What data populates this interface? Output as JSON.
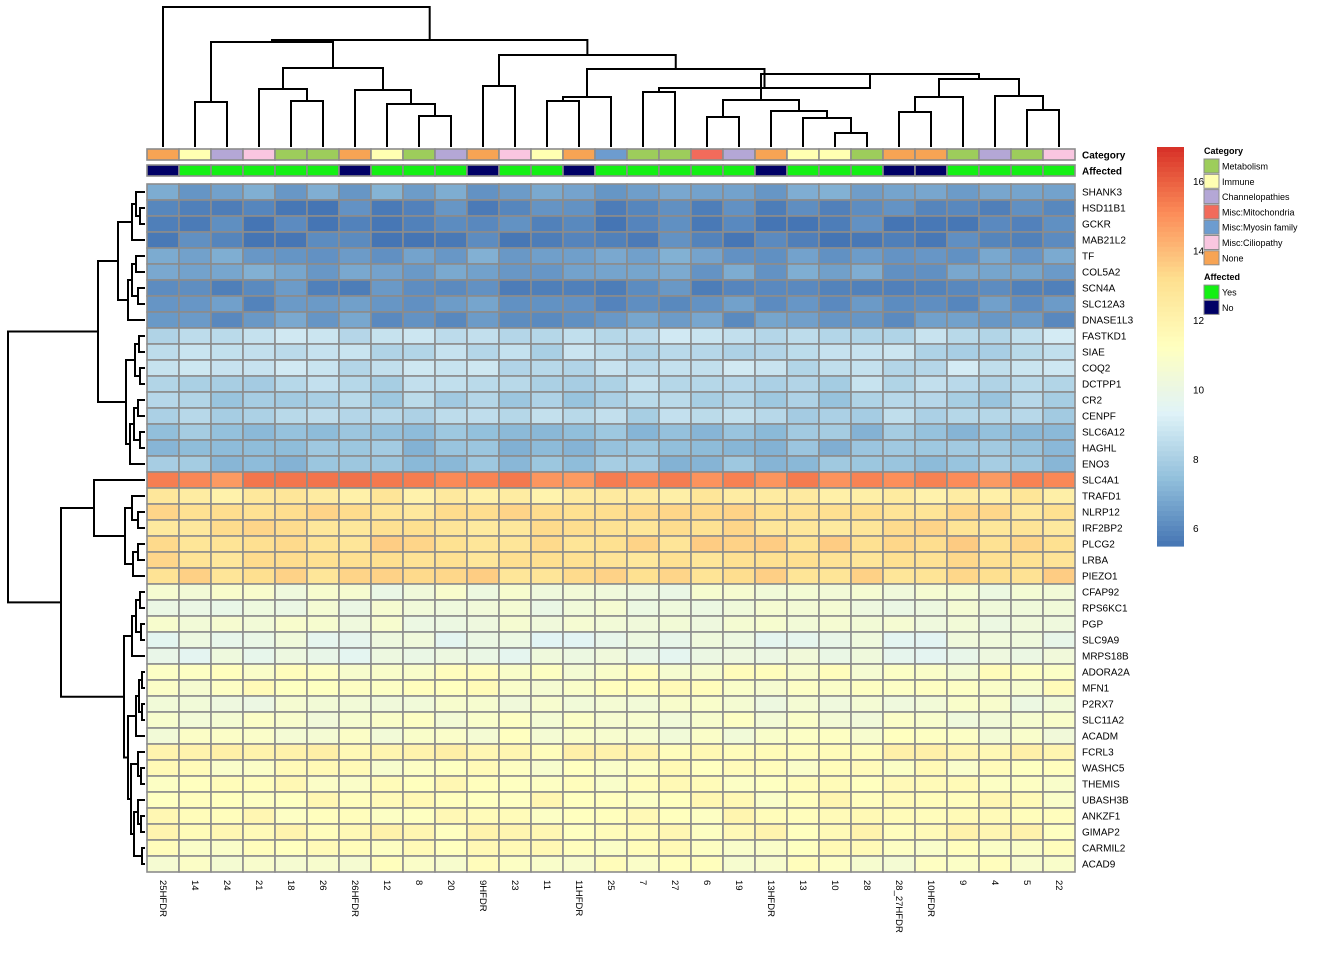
{
  "chart_data": {
    "type": "heatmap",
    "columns": [
      "25HFDR",
      "14",
      "24",
      "21",
      "18",
      "26",
      "26HFDR",
      "12",
      "8",
      "20",
      "9HFDR",
      "23",
      "11",
      "11HFDR",
      "25",
      "7",
      "27",
      "6",
      "19",
      "13HFDR",
      "13",
      "10",
      "28",
      "28_27HFDR",
      "10HFDR",
      "9",
      "4",
      "5",
      "22"
    ],
    "rows": [
      "SHANK3",
      "HSD11B1",
      "GCKR",
      "MAB21L2",
      "TF",
      "COL5A2",
      "SCN4A",
      "SLC12A3",
      "DNASE1L3",
      "FASTKD1",
      "SIAE",
      "COQ2",
      "DCTPP1",
      "CR2",
      "CENPF",
      "SLC6A12",
      "HAGHL",
      "ENO3",
      "SLC4A1",
      "TRAFD1",
      "NLRP12",
      "IRF2BP2",
      "PLCG2",
      "LRBA",
      "PIEZO1",
      "CFAP92",
      "RPS6KC1",
      "PGP",
      "SLC9A9",
      "MRPS18B",
      "ADORA2A",
      "MFN1",
      "P2RX7",
      "SLC11A2",
      "ACADM",
      "FCRL3",
      "WASHC5",
      "THEMIS",
      "UBASH3B",
      "ANKZF1",
      "GIMAP2",
      "CARMIL2",
      "ACAD9"
    ],
    "row_base_values": [
      6.7,
      5.9,
      5.8,
      5.8,
      6.6,
      6.6,
      6.1,
      6.3,
      6.4,
      8.6,
      8.4,
      8.6,
      8.3,
      8.0,
      8.2,
      7.5,
      7.4,
      7.5,
      15.2,
      12.4,
      13.1,
      13.0,
      13.2,
      13.0,
      13.2,
      10.4,
      10.3,
      10.4,
      9.9,
      10.0,
      11.0,
      11.1,
      10.5,
      10.7,
      10.8,
      11.8,
      11.2,
      11.3,
      11.4,
      11.5,
      11.6,
      11.3,
      11.0
    ],
    "annotations": {
      "Category": [
        "None",
        "Immune",
        "Channelopathies",
        "Misc:Ciliopathy",
        "Metabolism",
        "Metabolism",
        "None",
        "Immune",
        "Metabolism",
        "Channelopathies",
        "None",
        "Misc:Ciliopathy",
        "Immune",
        "None",
        "Misc:Myosin family",
        "Metabolism",
        "Metabolism",
        "Misc:Mitochondria",
        "Channelopathies",
        "None",
        "Immune",
        "Immune",
        "Metabolism",
        "None",
        "None",
        "Metabolism",
        "Channelopathies",
        "Metabolism",
        "Misc:Ciliopathy"
      ],
      "Affected": [
        "No",
        "Yes",
        "Yes",
        "Yes",
        "Yes",
        "Yes",
        "No",
        "Yes",
        "Yes",
        "Yes",
        "No",
        "Yes",
        "Yes",
        "No",
        "Yes",
        "Yes",
        "Yes",
        "Yes",
        "Yes",
        "No",
        "Yes",
        "Yes",
        "Yes",
        "No",
        "No",
        "Yes",
        "Yes",
        "Yes",
        "Yes"
      ]
    },
    "annotation_titles": [
      "Category",
      "Affected"
    ],
    "legend": {
      "Category": [
        {
          "label": "Metabolism",
          "color": "#9DCD5B"
        },
        {
          "label": "Immune",
          "color": "#FFFFB2"
        },
        {
          "label": "Channelopathies",
          "color": "#B4A7D6"
        },
        {
          "label": "Misc:Mitochondria",
          "color": "#F26B5B"
        },
        {
          "label": "Misc:Myosin family",
          "color": "#6D9CCF"
        },
        {
          "label": "Misc:Ciliopathy",
          "color": "#F9C6E0"
        },
        {
          "label": "None",
          "color": "#F7A454"
        }
      ],
      "Affected": [
        {
          "label": "Yes",
          "color": "#14F014"
        },
        {
          "label": "No",
          "color": "#000066"
        }
      ]
    },
    "color_scale": {
      "min": 5.5,
      "max": 17.0,
      "ticks": [
        6,
        8,
        10,
        12,
        14,
        16
      ],
      "stops": [
        "#4575B4",
        "#91BFDB",
        "#E0F3F8",
        "#FFFFBF",
        "#FEE090",
        "#FC8D59",
        "#D73027"
      ]
    }
  }
}
